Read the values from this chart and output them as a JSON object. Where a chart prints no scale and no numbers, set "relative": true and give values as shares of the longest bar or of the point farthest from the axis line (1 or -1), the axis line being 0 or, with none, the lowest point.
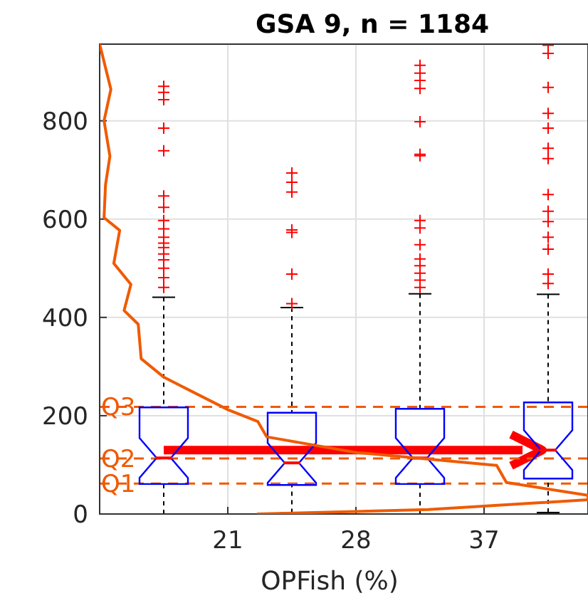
{
  "chart_data": [
    {
      "type": "box",
      "title": "GSA 9, n = 1184",
      "xlabel": "OPFish (%)",
      "categories": [
        null,
        null,
        null,
        null
      ],
      "annotations": [
        "21",
        "28",
        "37"
      ],
      "ylim": [
        0,
        956
      ],
      "yticks": [
        0,
        200,
        400,
        600,
        800
      ],
      "grid": true,
      "series": [
        {
          "color": "#0000ff",
          "boxes": [
            {
              "low": 0,
              "q1": 61,
              "median": 114,
              "q3": 217,
              "high": 441,
              "outliers": [
                870,
                858,
                843,
                785,
                739,
                647,
                624,
                597,
                580,
                563,
                551,
                542,
                529,
                517,
                500,
                481,
                461
              ]
            },
            {
              "low": 2,
              "q1": 59,
              "median": 104,
              "q3": 206,
              "high": 420,
              "outliers": [
                694,
                675,
                655,
                578,
                573,
                488,
                428
              ]
            },
            {
              "low": 0,
              "q1": 61,
              "median": 114,
              "q3": 214,
              "high": 448,
              "outliers": [
                913,
                897,
                882,
                866,
                798,
                732,
                729,
                597,
                582,
                548,
                519,
                505,
                490,
                476,
                461
              ]
            },
            {
              "low": 3,
              "q1": 72,
              "median": 130,
              "q3": 227,
              "high": 447,
              "outliers": [
                954,
                937,
                868,
                815,
                785,
                744,
                723,
                650,
                616,
                595,
                563,
                539,
                488,
                469
              ]
            }
          ]
        }
      ],
      "ref_lines": [
        {
          "axis": "y",
          "value": 218,
          "label": "Q3",
          "color": "#f05a00",
          "line_style": "dashed"
        },
        {
          "axis": "y",
          "value": 113,
          "label": "Q2",
          "color": "#f05a00",
          "line_style": "dashed"
        },
        {
          "axis": "y",
          "value": 62,
          "label": "Q1",
          "color": "#f05a00",
          "line_style": "dashed"
        }
      ],
      "marker": "cross"
    },
    {
      "type": "line",
      "orientation": "horizontal",
      "relative": true,
      "ylim": [
        0,
        956
      ],
      "series": [
        {
          "color": "#f05a00",
          "x": [
            956,
            864,
            800,
            728,
            670,
            603,
            577,
            510,
            467,
            414,
            386,
            316,
            278,
            212,
            188,
            157,
            125,
            99,
            64,
            38,
            29,
            9,
            0
          ],
          "values": [
            0,
            0.023,
            0.009,
            0.021,
            0.012,
            0.009,
            0.041,
            0.029,
            0.064,
            0.05,
            0.079,
            0.085,
            0.132,
            0.263,
            0.324,
            0.342,
            0.526,
            0.813,
            0.833,
            1,
            1,
            0.673,
            0.322
          ]
        }
      ]
    }
  ]
}
